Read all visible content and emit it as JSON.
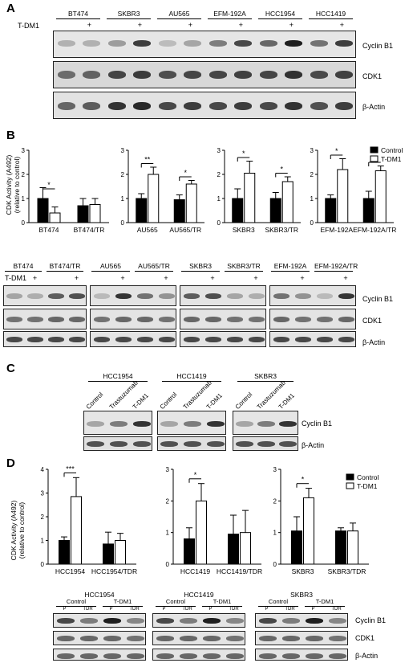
{
  "panelA": {
    "letter": "A",
    "treatment_label": "T-DM1",
    "plus": "+",
    "cell_lines": [
      "BT474",
      "SKBR3",
      "AU565",
      "EFM-192A",
      "HCC1954",
      "HCC1419"
    ],
    "row_labels": [
      "Cyclin B1",
      "CDK1",
      "β-Actin"
    ]
  },
  "panelB": {
    "letter": "B",
    "ylabel": "CDK Activity (A492)",
    "ylabel_sub": "(relative to control)",
    "legend": [
      "Control",
      "T-DM1"
    ],
    "blot_headers": [
      "BT474",
      "BT474/TR",
      "AU565",
      "AU565/TR",
      "SKBR3",
      "SKBR3/TR",
      "EFM-192A",
      "EFM-192A/TR"
    ],
    "treatment_label": "T-DM1",
    "plus": "+",
    "row_labels": [
      "Cyclin B1",
      "CDK1",
      "β-Actin"
    ]
  },
  "panelC": {
    "letter": "C",
    "groups": [
      "HCC1954",
      "HCC1419",
      "SKBR3"
    ],
    "lanes": [
      "Control",
      "Trastuzumab",
      "T-DM1"
    ],
    "row_labels": [
      "Cyclin B1",
      "β-Actin"
    ]
  },
  "panelD": {
    "letter": "D",
    "ylabel": "CDK Activity (A492)",
    "ylabel_sub": "(relative to control)",
    "legend": [
      "Control",
      "T-DM1"
    ],
    "blot_groups": [
      "HCC1954",
      "HCC1419",
      "SKBR3"
    ],
    "sub_groups": [
      "Control",
      "T-DM1"
    ],
    "lanes": [
      "P",
      "TDR",
      "P",
      "TDR"
    ],
    "row_labels": [
      "Cyclin B1",
      "CDK1",
      "β-Actin"
    ]
  },
  "chart_data": [
    {
      "type": "bar",
      "panel": "B",
      "categories": [
        "BT474",
        "BT474/TR"
      ],
      "series": [
        {
          "name": "Control",
          "values": [
            1.0,
            0.7
          ]
        },
        {
          "name": "T-DM1",
          "values": [
            0.4,
            0.75
          ]
        }
      ],
      "ylim": [
        0,
        3
      ],
      "yticks": [
        0,
        1,
        2,
        3
      ],
      "annotations": [
        "*"
      ]
    },
    {
      "type": "bar",
      "panel": "B",
      "categories": [
        "AU565",
        "AU565/TR"
      ],
      "series": [
        {
          "name": "Control",
          "values": [
            1.0,
            0.95
          ]
        },
        {
          "name": "T-DM1",
          "values": [
            2.0,
            1.6
          ]
        }
      ],
      "ylim": [
        0,
        3
      ],
      "yticks": [
        0,
        1,
        2,
        3
      ],
      "annotations": [
        "**",
        "*"
      ]
    },
    {
      "type": "bar",
      "panel": "B",
      "categories": [
        "SKBR3",
        "SKBR3/TR"
      ],
      "series": [
        {
          "name": "Control",
          "values": [
            1.0,
            1.0
          ]
        },
        {
          "name": "T-DM1",
          "values": [
            2.05,
            1.7
          ]
        }
      ],
      "ylim": [
        0,
        3
      ],
      "yticks": [
        0,
        1,
        2,
        3
      ],
      "annotations": [
        "*",
        "*"
      ]
    },
    {
      "type": "bar",
      "panel": "B",
      "categories": [
        "EFM-192A",
        "EFM-192A/TR"
      ],
      "series": [
        {
          "name": "Control",
          "values": [
            1.0,
            1.0
          ]
        },
        {
          "name": "T-DM1",
          "values": [
            2.2,
            2.15
          ]
        }
      ],
      "ylim": [
        0,
        3
      ],
      "yticks": [
        0,
        1,
        2,
        3
      ],
      "annotations": [
        "*",
        "**"
      ]
    },
    {
      "type": "bar",
      "panel": "D",
      "categories": [
        "HCC1954",
        "HCC1954/TDR"
      ],
      "series": [
        {
          "name": "Control",
          "values": [
            1.0,
            0.85
          ]
        },
        {
          "name": "T-DM1",
          "values": [
            2.85,
            1.0
          ]
        }
      ],
      "ylim": [
        0,
        4
      ],
      "yticks": [
        0,
        1,
        2,
        3,
        4
      ],
      "annotations": [
        "***"
      ]
    },
    {
      "type": "bar",
      "panel": "D",
      "categories": [
        "HCC1419",
        "HCC1419/TDR"
      ],
      "series": [
        {
          "name": "Control",
          "values": [
            0.8,
            0.95
          ]
        },
        {
          "name": "T-DM1",
          "values": [
            2.0,
            1.0
          ]
        }
      ],
      "ylim": [
        0,
        3
      ],
      "yticks": [
        0,
        1,
        2,
        3
      ],
      "annotations": [
        "*"
      ]
    },
    {
      "type": "bar",
      "panel": "D",
      "categories": [
        "SKBR3",
        "SKBR3/TDR"
      ],
      "series": [
        {
          "name": "Control",
          "values": [
            1.05,
            1.05
          ]
        },
        {
          "name": "T-DM1",
          "values": [
            2.1,
            1.05
          ]
        }
      ],
      "ylim": [
        0,
        3
      ],
      "yticks": [
        0,
        1,
        2,
        3
      ],
      "annotations": [
        "*"
      ]
    }
  ]
}
